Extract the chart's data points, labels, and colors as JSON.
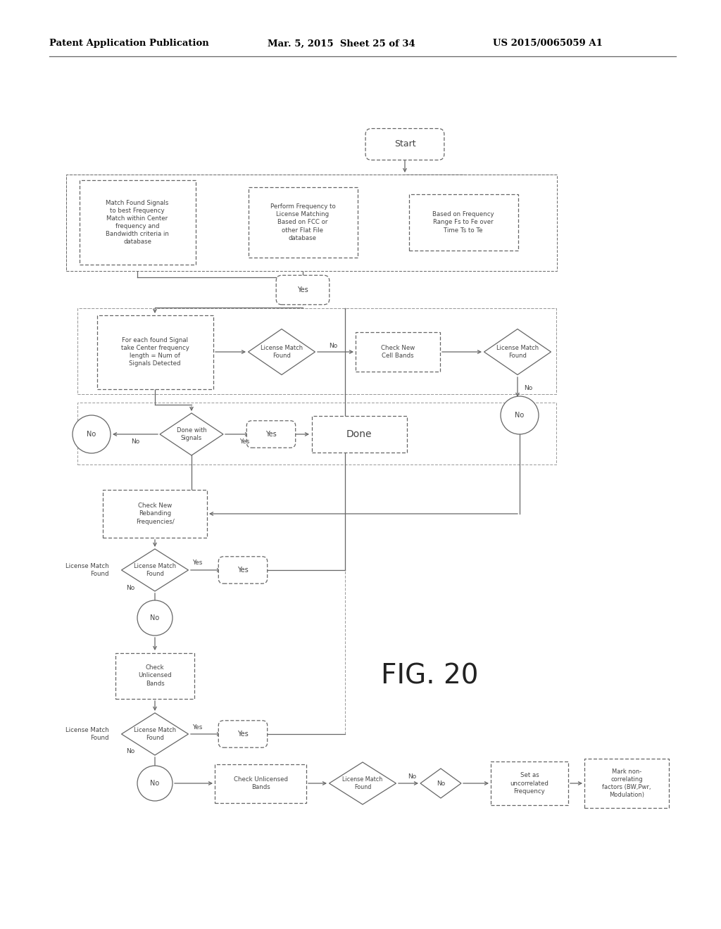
{
  "title_left": "Patent Application Publication",
  "title_mid": "Mar. 5, 2015  Sheet 25 of 34",
  "title_right": "US 2015/0065059 A1",
  "fig_label": "FIG. 20",
  "background": "#ffffff",
  "text_color": "#444444",
  "header_color": "#000000"
}
